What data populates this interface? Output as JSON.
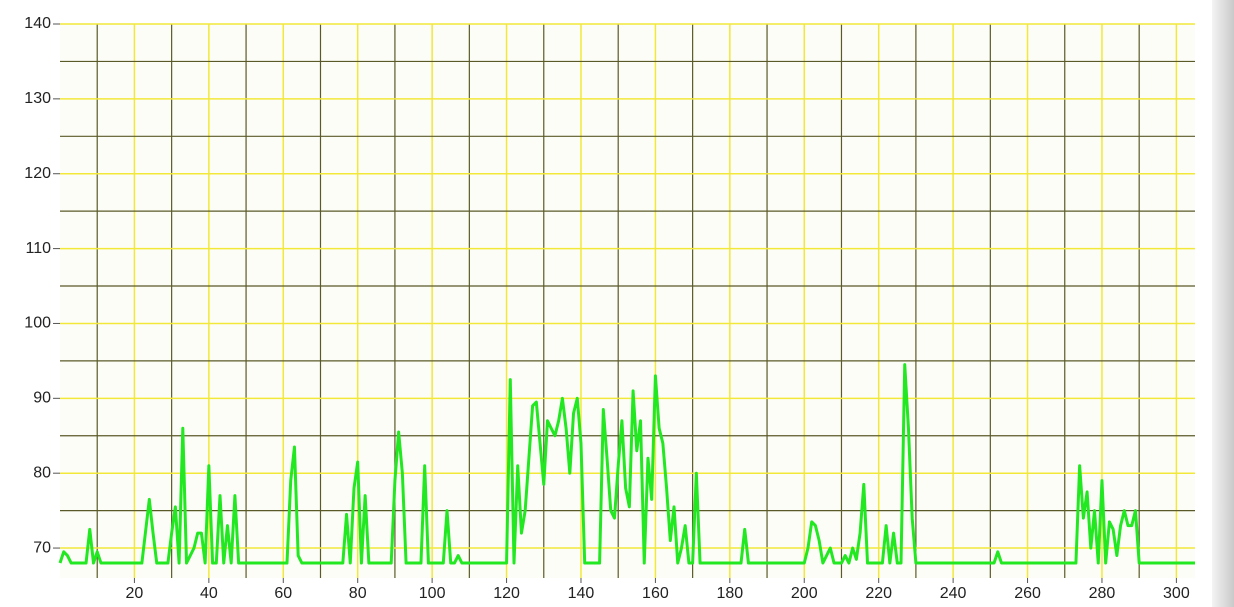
{
  "chart_data": {
    "type": "line",
    "xlim": [
      0,
      305
    ],
    "xticks": [
      20,
      40,
      60,
      80,
      100,
      120,
      140,
      160,
      180,
      200,
      220,
      240,
      260,
      280,
      300
    ],
    "ylim": [
      66,
      140
    ],
    "yticks": [
      70,
      80,
      90,
      100,
      110,
      120,
      130,
      140
    ],
    "grid": true,
    "grid_color": "#f2e83a",
    "major_grid_color": "#5a5a28",
    "background": "#fdfdf7",
    "series": [
      {
        "color": "#22e822",
        "x": [
          0,
          1,
          2,
          3,
          7,
          8,
          9,
          10,
          11,
          22,
          24,
          25,
          26,
          29,
          30,
          31,
          32,
          33,
          34,
          36,
          37,
          38,
          39,
          40,
          41,
          42,
          43,
          44,
          45,
          46,
          47,
          48,
          61,
          62,
          63,
          64,
          65,
          76,
          77,
          78,
          79,
          80,
          81,
          82,
          83,
          89,
          90,
          91,
          92,
          93,
          97,
          98,
          99,
          103,
          104,
          105,
          106,
          107,
          108,
          120,
          121,
          122,
          123,
          124,
          125,
          126,
          127,
          128,
          129,
          130,
          131,
          132,
          133,
          134,
          135,
          136,
          137,
          138,
          139,
          140,
          141,
          145,
          146,
          147,
          148,
          149,
          150,
          151,
          152,
          153,
          154,
          155,
          156,
          157,
          158,
          159,
          160,
          161,
          162,
          163,
          164,
          165,
          166,
          167,
          168,
          169,
          170,
          171,
          172,
          183,
          184,
          185,
          200,
          201,
          202,
          203,
          204,
          205,
          206,
          207,
          208,
          210,
          211,
          212,
          213,
          214,
          215,
          216,
          217,
          221,
          222,
          223,
          224,
          225,
          226,
          227,
          228,
          229,
          230,
          251,
          252,
          253,
          273,
          274,
          275,
          276,
          277,
          278,
          279,
          280,
          281,
          282,
          283,
          284,
          285,
          286,
          287,
          288,
          289,
          290,
          305
        ],
        "values": [
          68,
          69.5,
          69,
          68,
          68,
          72.5,
          68,
          69.5,
          68,
          68,
          76.5,
          72,
          68,
          68,
          72,
          75.5,
          68,
          86,
          68,
          70,
          72,
          72,
          68,
          81,
          68,
          68,
          77,
          68,
          73,
          68,
          77,
          68,
          68,
          79,
          83.5,
          69,
          68,
          68,
          74.5,
          68,
          78,
          81.5,
          68,
          77,
          68,
          68,
          79,
          85.5,
          80,
          68,
          68,
          81,
          68,
          68,
          75,
          68,
          68,
          69,
          68,
          68,
          92.5,
          68,
          81,
          72,
          75,
          82,
          89,
          89.5,
          84,
          78.5,
          87,
          86,
          85,
          87,
          90,
          86,
          80,
          88,
          90,
          84,
          68,
          68,
          88.5,
          82,
          75,
          74,
          81,
          87,
          78,
          75.5,
          91,
          83,
          87,
          68,
          82,
          76.5,
          93,
          86,
          84,
          78,
          71,
          75.5,
          68,
          70,
          73,
          68,
          68,
          80,
          68,
          68,
          72.5,
          68,
          68,
          70,
          73.5,
          73,
          71,
          68,
          69,
          70,
          68,
          68,
          69,
          68,
          70,
          68.5,
          72,
          78.5,
          68,
          68,
          73,
          68,
          72,
          68,
          68,
          94.5,
          86,
          74,
          68,
          68,
          69.5,
          68,
          68,
          81,
          74,
          77.5,
          70,
          75,
          68,
          79,
          68,
          73.5,
          72.5,
          69,
          73,
          75,
          73,
          73,
          75,
          68,
          68
        ]
      }
    ]
  }
}
